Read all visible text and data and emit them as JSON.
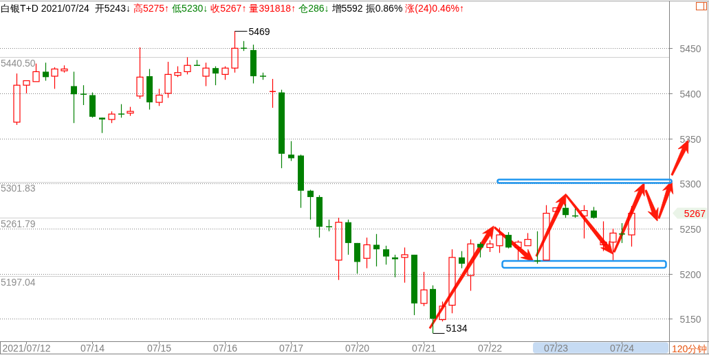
{
  "chart_data": {
    "type": "candlestick",
    "title": "白银T+D 2021/07/24",
    "xlabel": "120分钟",
    "categories": [
      null,
      "2021/07/12",
      null,
      null,
      null,
      null,
      null,
      null,
      "07/14",
      null,
      null,
      null,
      null,
      null,
      null,
      "07/15",
      null,
      null,
      null,
      null,
      null,
      null,
      "07/16",
      null,
      null,
      null,
      null,
      null,
      null,
      "07/17",
      null,
      null,
      null,
      null,
      null,
      null,
      "07/20",
      null,
      null,
      null,
      null,
      null,
      null,
      "07/21",
      null,
      null,
      null,
      null,
      null,
      null,
      "07/22",
      null,
      null,
      null,
      null,
      null,
      null,
      "07/23",
      null,
      null,
      null,
      null,
      null,
      null,
      "07/24",
      null
    ],
    "ohlc": [
      [
        5368,
        5422,
        5365,
        5409
      ],
      [
        5409,
        5414,
        5400,
        5414
      ],
      [
        5413,
        5433,
        5412,
        5424
      ],
      [
        5424,
        5434,
        5414,
        5418
      ],
      [
        5419,
        5429,
        5405,
        5427
      ],
      [
        5425,
        5431,
        5423,
        5427
      ],
      [
        5408,
        5424,
        5367,
        5399
      ],
      [
        5399,
        5409,
        5387,
        5399
      ],
      [
        5398,
        5401,
        5373,
        5374
      ],
      [
        5373,
        5373,
        5356,
        5371
      ],
      [
        5371,
        5380,
        5367,
        5377
      ],
      [
        5377,
        5388,
        5373,
        5377
      ],
      [
        5378,
        5385,
        5375,
        5380
      ],
      [
        5397,
        5451,
        5394,
        5418
      ],
      [
        5419,
        5427,
        5382,
        5390
      ],
      [
        5390,
        5405,
        5386,
        5398
      ],
      [
        5400,
        5435,
        5395,
        5421
      ],
      [
        5420,
        5430,
        5418,
        5423
      ],
      [
        5424,
        5440,
        5421,
        5431
      ],
      [
        5431,
        5437,
        5431,
        5431
      ],
      [
        5419,
        5434,
        5408,
        5428
      ],
      [
        5428,
        5430,
        5409,
        5422
      ],
      [
        5421,
        5430,
        5415,
        5428
      ],
      [
        5428,
        5469,
        5423,
        5450
      ],
      [
        5450,
        5458,
        5447,
        5450
      ],
      [
        5448,
        5454,
        5411,
        5419
      ],
      [
        5419,
        5423,
        5415,
        5419
      ],
      [
        5402,
        5416,
        5384,
        5402
      ],
      [
        5401,
        5404,
        5317,
        5333
      ],
      [
        5332,
        5347,
        5325,
        5328
      ],
      [
        5331,
        5332,
        5273,
        5292
      ],
      [
        5292,
        5293,
        5260,
        5285
      ],
      [
        5285,
        5287,
        5240,
        5252
      ],
      [
        5252,
        5260,
        5247,
        5252
      ],
      [
        5215,
        5262,
        5193,
        5257
      ],
      [
        5257,
        5260,
        5221,
        5234
      ],
      [
        5234,
        5234,
        5200,
        5213
      ],
      [
        5217,
        5240,
        5206,
        5232
      ],
      [
        5232,
        5244,
        5208,
        5227
      ],
      [
        5227,
        5231,
        5210,
        5219
      ],
      [
        5218,
        5221,
        5196,
        5216
      ],
      [
        5218,
        5229,
        5190,
        5221
      ],
      [
        5221,
        5221,
        5154,
        5167
      ],
      [
        5167,
        5202,
        5164,
        5182
      ],
      [
        5183,
        5187,
        5134,
        5150
      ],
      [
        5149,
        5169,
        5147,
        5164
      ],
      [
        5165,
        5227,
        5156,
        5218
      ],
      [
        5218,
        5225,
        5206,
        5211
      ],
      [
        5198,
        5238,
        5181,
        5233
      ],
      [
        5233,
        5235,
        5218,
        5229
      ],
      [
        5229,
        5237,
        5224,
        5233
      ],
      [
        5231,
        5251,
        5223,
        5243
      ],
      [
        5243,
        5246,
        5228,
        5229
      ],
      [
        5229,
        5237,
        5215,
        5235
      ],
      [
        5231,
        5245,
        5231,
        5238
      ],
      [
        5214,
        5247,
        5211,
        5214
      ],
      [
        5215,
        5276,
        5215,
        5267
      ],
      [
        5269,
        5274,
        5269,
        5273
      ],
      [
        5273,
        5277,
        5262,
        5265
      ],
      [
        5264,
        5272,
        5262,
        5264
      ],
      [
        5264,
        5276,
        5239,
        5270
      ],
      [
        5270,
        5274,
        5261,
        5262
      ],
      [
        5232,
        5258,
        5225,
        5235
      ],
      [
        5235,
        5250,
        5215,
        5245
      ],
      [
        5244,
        5256,
        5234,
        5244
      ],
      [
        5243,
        5275,
        5230,
        5267
      ]
    ],
    "colors": [
      "#ff0000",
      "#ff0000",
      "#ff0000",
      "#008000",
      "#ff0000",
      "#ff0000",
      "#008000",
      "#008000",
      "#008000",
      "#008000",
      "#ff0000",
      "#008000",
      "#ff0000",
      "#ff0000",
      "#008000",
      "#ff0000",
      "#ff0000",
      "#ff0000",
      "#ff0000",
      "#008000",
      "#ff0000",
      "#008000",
      "#ff0000",
      "#ff0000",
      "#008000",
      "#008000",
      "#008000",
      "#ff0000",
      "#008000",
      "#008000",
      "#008000",
      "#008000",
      "#008000",
      "#008000",
      "#ff0000",
      "#008000",
      "#008000",
      "#ff0000",
      "#008000",
      "#008000",
      "#008000",
      "#ff0000",
      "#008000",
      "#ff0000",
      "#008000",
      "#ff0000",
      "#ff0000",
      "#008000",
      "#ff0000",
      "#008000",
      "#ff0000",
      "#ff0000",
      "#008000",
      "#ff0000",
      "#ff0000",
      "#008000",
      "#ff0000",
      "#ff0000",
      "#008000",
      "#008000",
      "#ff0000",
      "#008000",
      "#ff0000",
      "#ff0000",
      "#008000",
      "#ff0000"
    ],
    "ylim": [
      5125,
      5502
    ],
    "yticks": [
      5150,
      5200,
      5250,
      5300,
      5350,
      5400,
      5450
    ],
    "grid": "y",
    "ref_lines": [
      {
        "axis": "y",
        "value": 5440.5,
        "label": "5440.50",
        "color": "#cfcfcf"
      },
      {
        "axis": "y",
        "value": 5301.83,
        "label": "5301.83",
        "color": "#cfcfcf"
      },
      {
        "axis": "y",
        "value": 5261.79,
        "label": "5261.79",
        "color": "#cfcfcf"
      },
      {
        "axis": "y",
        "value": 5197.04,
        "label": "5197.04",
        "color": "#cfcfcf"
      }
    ],
    "annotations": [
      "开5243↓",
      "高5275↑",
      "低5230↓",
      "收5267↑",
      "量391818↑",
      "仓286↓",
      "增5592",
      "振0.86%",
      "涨(24)0.46%↑",
      "5469",
      "5134",
      "5267"
    ]
  }
}
